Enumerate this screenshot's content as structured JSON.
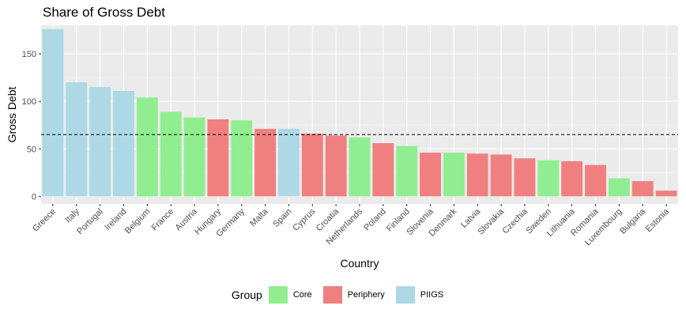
{
  "chart_data": {
    "type": "bar",
    "title": "Share of Gross Debt",
    "xlabel": "Country",
    "ylabel": "Gross Debt",
    "ylim": [
      -8,
      180
    ],
    "yticks": [
      0,
      50,
      100,
      150
    ],
    "reference_line": 65,
    "categories": [
      "Greece",
      "Italy",
      "Portugal",
      "Ireland",
      "Belgium",
      "France",
      "Austria",
      "Hungary",
      "Germany",
      "Malta",
      "Spain",
      "Cyprus",
      "Croatia",
      "Netherlands",
      "Poland",
      "Finland",
      "Slovenia",
      "Denmark",
      "Latvia",
      "Slovakia",
      "Czechia",
      "Sweden",
      "Lithuania",
      "Romania",
      "Luxembourg",
      "Bulgaria",
      "Estonia"
    ],
    "values": [
      176,
      120,
      115,
      111,
      104,
      89,
      83,
      81,
      80,
      71,
      71,
      66,
      64,
      62,
      56,
      53,
      46,
      46,
      45,
      44,
      40,
      38,
      37,
      33,
      19,
      16,
      6
    ],
    "groups": [
      "PIIGS",
      "PIIGS",
      "PIIGS",
      "PIIGS",
      "Core",
      "Core",
      "Core",
      "Periphery",
      "Core",
      "Periphery",
      "PIIGS",
      "Periphery",
      "Periphery",
      "Core",
      "Periphery",
      "Core",
      "Periphery",
      "Core",
      "Periphery",
      "Periphery",
      "Periphery",
      "Core",
      "Periphery",
      "Periphery",
      "Core",
      "Periphery",
      "Periphery"
    ],
    "legend": {
      "title": "Group",
      "position": "bottom",
      "items": [
        {
          "name": "Core",
          "color": "#90EE90"
        },
        {
          "name": "Periphery",
          "color": "#F08080"
        },
        {
          "name": "PIIGS",
          "color": "#ADD8E6"
        }
      ]
    },
    "grid": true
  }
}
